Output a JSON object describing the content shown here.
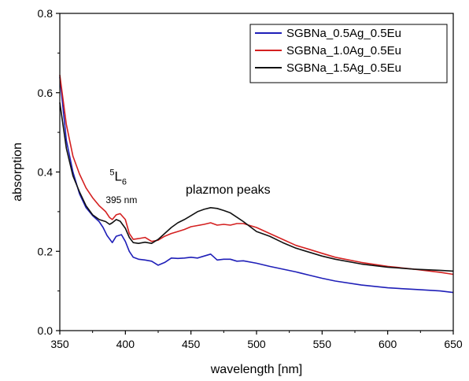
{
  "chart_data": {
    "type": "line",
    "xlabel": "wavelength [nm]",
    "ylabel": "absorption",
    "xlim": [
      350,
      650
    ],
    "ylim": [
      0.0,
      0.8
    ],
    "x_ticks": [
      350,
      400,
      450,
      500,
      550,
      600,
      650
    ],
    "x_tick_labels": [
      "350",
      "400",
      "450",
      "500",
      "550",
      "600",
      "650"
    ],
    "y_ticks": [
      0.0,
      0.2,
      0.4,
      0.6,
      0.8
    ],
    "y_tick_labels": [
      "0.0",
      "0.2",
      "0.4",
      "0.6",
      "0.8"
    ],
    "grid": false,
    "legend_position": "top-right",
    "series": [
      {
        "name": "SGBNa_0.5Ag_0.5Eu",
        "color": "#1f1fb8",
        "x": [
          350,
          355,
          360,
          365,
          370,
          375,
          380,
          383,
          386,
          390,
          393,
          397,
          400,
          403,
          406,
          410,
          415,
          420,
          425,
          430,
          435,
          440,
          445,
          450,
          455,
          460,
          465,
          470,
          475,
          480,
          485,
          490,
          500,
          510,
          520,
          530,
          540,
          550,
          560,
          580,
          600,
          620,
          640,
          650
        ],
        "y": [
          0.64,
          0.48,
          0.4,
          0.345,
          0.31,
          0.29,
          0.275,
          0.26,
          0.24,
          0.222,
          0.238,
          0.242,
          0.225,
          0.2,
          0.185,
          0.18,
          0.178,
          0.175,
          0.165,
          0.172,
          0.183,
          0.182,
          0.183,
          0.185,
          0.183,
          0.188,
          0.193,
          0.178,
          0.18,
          0.18,
          0.175,
          0.176,
          0.17,
          0.162,
          0.155,
          0.148,
          0.14,
          0.132,
          0.125,
          0.115,
          0.108,
          0.104,
          0.1,
          0.096
        ]
      },
      {
        "name": "SGBNa_1.0Ag_0.5Eu",
        "color": "#d42020",
        "x": [
          350,
          355,
          360,
          365,
          370,
          375,
          380,
          385,
          388,
          390,
          393,
          396,
          400,
          403,
          406,
          410,
          415,
          420,
          425,
          430,
          435,
          440,
          445,
          450,
          455,
          460,
          465,
          470,
          475,
          480,
          485,
          490,
          500,
          510,
          520,
          530,
          540,
          550,
          560,
          580,
          600,
          620,
          640,
          650
        ],
        "y": [
          0.645,
          0.52,
          0.44,
          0.395,
          0.36,
          0.335,
          0.315,
          0.3,
          0.285,
          0.28,
          0.292,
          0.295,
          0.28,
          0.245,
          0.23,
          0.232,
          0.235,
          0.225,
          0.228,
          0.238,
          0.245,
          0.25,
          0.255,
          0.262,
          0.265,
          0.268,
          0.272,
          0.266,
          0.268,
          0.266,
          0.27,
          0.27,
          0.26,
          0.245,
          0.23,
          0.215,
          0.205,
          0.195,
          0.185,
          0.172,
          0.162,
          0.155,
          0.147,
          0.142
        ]
      },
      {
        "name": "SGBNa_1.5Ag_0.5Eu",
        "color": "#111111",
        "x": [
          350,
          355,
          360,
          365,
          370,
          375,
          380,
          385,
          388,
          390,
          393,
          396,
          400,
          403,
          406,
          410,
          415,
          420,
          425,
          430,
          435,
          440,
          445,
          450,
          455,
          460,
          465,
          470,
          475,
          480,
          485,
          490,
          500,
          510,
          520,
          530,
          540,
          550,
          560,
          580,
          600,
          620,
          640,
          650
        ],
        "y": [
          0.575,
          0.46,
          0.39,
          0.35,
          0.315,
          0.292,
          0.28,
          0.275,
          0.268,
          0.272,
          0.28,
          0.276,
          0.258,
          0.235,
          0.222,
          0.22,
          0.223,
          0.22,
          0.23,
          0.245,
          0.26,
          0.272,
          0.28,
          0.29,
          0.3,
          0.306,
          0.31,
          0.308,
          0.303,
          0.297,
          0.286,
          0.275,
          0.25,
          0.238,
          0.222,
          0.208,
          0.198,
          0.188,
          0.18,
          0.168,
          0.16,
          0.155,
          0.152,
          0.15
        ]
      }
    ],
    "annotations": [
      {
        "sup": "5",
        "base": "L",
        "sub": "6",
        "x": 388,
        "y": 0.378
      },
      {
        "text": "395 nm",
        "x": 385,
        "y": 0.322
      },
      {
        "text": "plazmon peaks",
        "x": 446,
        "y": 0.345
      }
    ]
  }
}
